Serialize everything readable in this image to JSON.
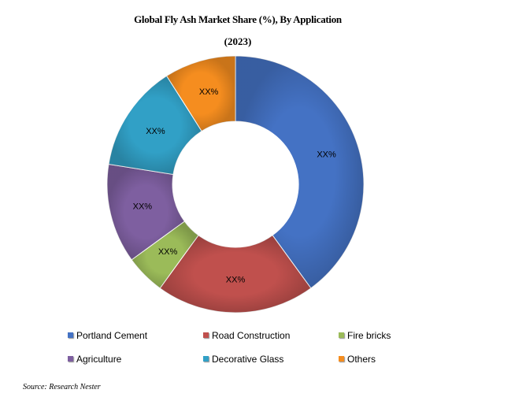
{
  "chart_data": {
    "type": "pie",
    "donut": true,
    "title": "Global Fly Ash Market Share (%), By Application",
    "subtitle": "(2023)",
    "categories": [
      "Portland Cement",
      "Road Construction",
      "Fire bricks",
      "Agriculture",
      "Decorative Glass",
      "Others"
    ],
    "values": [
      40,
      20,
      5,
      12.5,
      13.5,
      9
    ],
    "data_labels": [
      "XX%",
      "XX%",
      "XX%",
      "XX%",
      "XX%",
      "XX%"
    ],
    "colors": [
      "#4472C4",
      "#C0504D",
      "#9BBB59",
      "#7E5FA0",
      "#31A0C6",
      "#F58D1F"
    ],
    "legend_position": "bottom",
    "source": "Source: Research Nester"
  }
}
